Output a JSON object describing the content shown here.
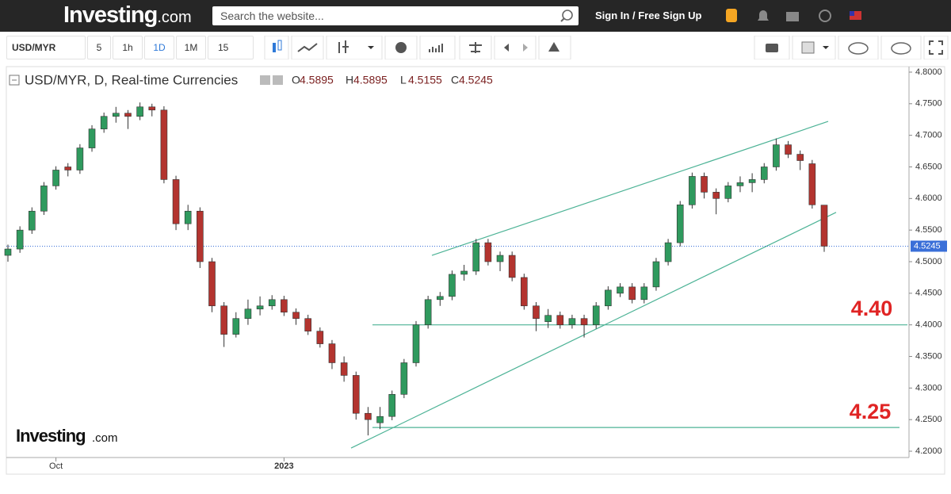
{
  "header": {
    "logo": "Investing",
    "logo_suffix": ".com",
    "search_placeholder": "Search the website...",
    "sign_in": "Sign In",
    "separator": "/",
    "sign_up": "Free Sign Up"
  },
  "toolbar": {
    "symbol": "USD/MYR",
    "intervals": [
      "5",
      "1h",
      "1D",
      "1M",
      "15"
    ]
  },
  "chart_data": {
    "type": "candlestick",
    "title": "USD/MYR, D, Real-time Currencies",
    "ohlc_labels": [
      "O",
      "H",
      "L",
      "C"
    ],
    "watermark": "Investing",
    "watermark_suffix": ".com",
    "categories": [
      null,
      null,
      null,
      null,
      "Oct",
      null,
      null,
      null,
      null,
      null,
      null,
      null,
      null,
      null,
      null,
      null,
      null,
      null,
      null,
      null,
      null,
      null,
      null,
      "2023",
      null,
      null,
      null,
      null,
      null,
      null,
      null,
      null,
      null,
      null,
      null,
      null,
      null,
      null,
      null,
      null,
      null,
      null,
      null,
      null,
      null,
      null,
      null,
      null,
      null,
      null,
      null,
      null,
      null,
      null,
      null,
      null,
      null,
      null,
      null,
      null,
      null,
      null,
      null,
      null,
      null,
      null,
      null,
      null,
      null
    ],
    "open": [
      4.51,
      4.52,
      4.55,
      4.58,
      4.62,
      4.65,
      4.645,
      4.68,
      4.71,
      4.73,
      4.735,
      4.73,
      4.745,
      4.74,
      4.63,
      4.56,
      4.58,
      4.5,
      4.43,
      4.385,
      4.41,
      4.425,
      4.43,
      4.44,
      4.42,
      4.41,
      4.39,
      4.37,
      4.34,
      4.32,
      4.26,
      4.245,
      4.255,
      4.29,
      4.34,
      4.4,
      4.44,
      4.445,
      4.48,
      4.485,
      4.53,
      4.5,
      4.51,
      4.475,
      4.43,
      4.405,
      4.415,
      4.4,
      4.41,
      4.4,
      4.43,
      4.45,
      4.46,
      4.44,
      4.46,
      4.5,
      4.53,
      4.59,
      4.635,
      4.61,
      4.6,
      4.62,
      4.625,
      4.63,
      4.65,
      4.685,
      4.67,
      4.655,
      4.5895
    ],
    "high": [
      4.527,
      4.556,
      4.586,
      4.626,
      4.651,
      4.656,
      4.686,
      4.716,
      4.736,
      4.745,
      4.74,
      4.752,
      4.75,
      4.746,
      4.636,
      4.59,
      4.586,
      4.506,
      4.436,
      4.42,
      4.44,
      4.445,
      4.447,
      4.446,
      4.426,
      4.416,
      4.396,
      4.376,
      4.35,
      4.326,
      4.27,
      4.27,
      4.296,
      4.346,
      4.406,
      4.446,
      4.452,
      4.486,
      4.495,
      4.536,
      4.536,
      4.516,
      4.516,
      4.481,
      4.436,
      4.425,
      4.421,
      4.416,
      4.416,
      4.436,
      4.461,
      4.466,
      4.466,
      4.466,
      4.506,
      4.536,
      4.596,
      4.641,
      4.641,
      4.616,
      4.626,
      4.635,
      4.64,
      4.656,
      4.695,
      4.691,
      4.676,
      4.661,
      4.5895
    ],
    "low": [
      4.5,
      4.514,
      4.544,
      4.574,
      4.614,
      4.635,
      4.639,
      4.674,
      4.704,
      4.72,
      4.71,
      4.724,
      4.73,
      4.624,
      4.55,
      4.55,
      4.49,
      4.42,
      4.365,
      4.38,
      4.4,
      4.415,
      4.424,
      4.414,
      4.4,
      4.384,
      4.364,
      4.33,
      4.31,
      4.25,
      4.225,
      4.235,
      4.249,
      4.284,
      4.334,
      4.394,
      4.43,
      4.439,
      4.47,
      4.479,
      4.494,
      4.485,
      4.469,
      4.424,
      4.39,
      4.395,
      4.394,
      4.394,
      4.38,
      4.394,
      4.424,
      4.444,
      4.434,
      4.434,
      4.454,
      4.494,
      4.524,
      4.584,
      4.6,
      4.575,
      4.594,
      4.61,
      4.61,
      4.624,
      4.644,
      4.664,
      4.645,
      4.584,
      4.5155
    ],
    "close": [
      4.52,
      4.55,
      4.58,
      4.62,
      4.645,
      4.645,
      4.68,
      4.71,
      4.73,
      4.735,
      4.73,
      4.745,
      4.74,
      4.63,
      4.56,
      4.58,
      4.5,
      4.43,
      4.385,
      4.41,
      4.425,
      4.43,
      4.44,
      4.42,
      4.41,
      4.39,
      4.37,
      4.34,
      4.32,
      4.26,
      4.25,
      4.255,
      4.29,
      4.34,
      4.4,
      4.44,
      4.445,
      4.48,
      4.485,
      4.53,
      4.5,
      4.51,
      4.475,
      4.43,
      4.41,
      4.415,
      4.4,
      4.41,
      4.4,
      4.43,
      4.455,
      4.46,
      4.44,
      4.46,
      4.5,
      4.53,
      4.59,
      4.635,
      4.61,
      4.6,
      4.62,
      4.625,
      4.63,
      4.65,
      4.685,
      4.67,
      4.66,
      4.59,
      4.5245
    ],
    "up_color": "#2f9a5e",
    "down_color": "#b3342f",
    "ylim": [
      4.19,
      4.81
    ],
    "yticks": [
      {
        "value": 4.2,
        "label": "4.2000"
      },
      {
        "value": 4.25,
        "label": "4.2500"
      },
      {
        "value": 4.3,
        "label": "4.3000"
      },
      {
        "value": 4.35,
        "label": "4.3500"
      },
      {
        "value": 4.4,
        "label": "4.4000"
      },
      {
        "value": 4.45,
        "label": "4.4500"
      },
      {
        "value": 4.5,
        "label": "4.5000"
      },
      {
        "value": 4.55,
        "label": "4.5500"
      },
      {
        "value": 4.6,
        "label": "4.6000"
      },
      {
        "value": 4.65,
        "label": "4.6500"
      },
      {
        "value": 4.7,
        "label": "4.7000"
      },
      {
        "value": 4.75,
        "label": "4.7500"
      },
      {
        "value": 4.8,
        "label": "4.8000"
      }
    ],
    "levels": [
      4.4,
      4.2375
    ],
    "trendlines": [
      {
        "start": 4.51,
        "end": 4.722
      },
      {
        "start": 4.205,
        "end": 4.578
      }
    ],
    "line_color": "#4db396",
    "annotations": [
      "4.40",
      "4.25"
    ],
    "annotation_color": "#e02424",
    "last_price_color": "#3a6fd8"
  }
}
